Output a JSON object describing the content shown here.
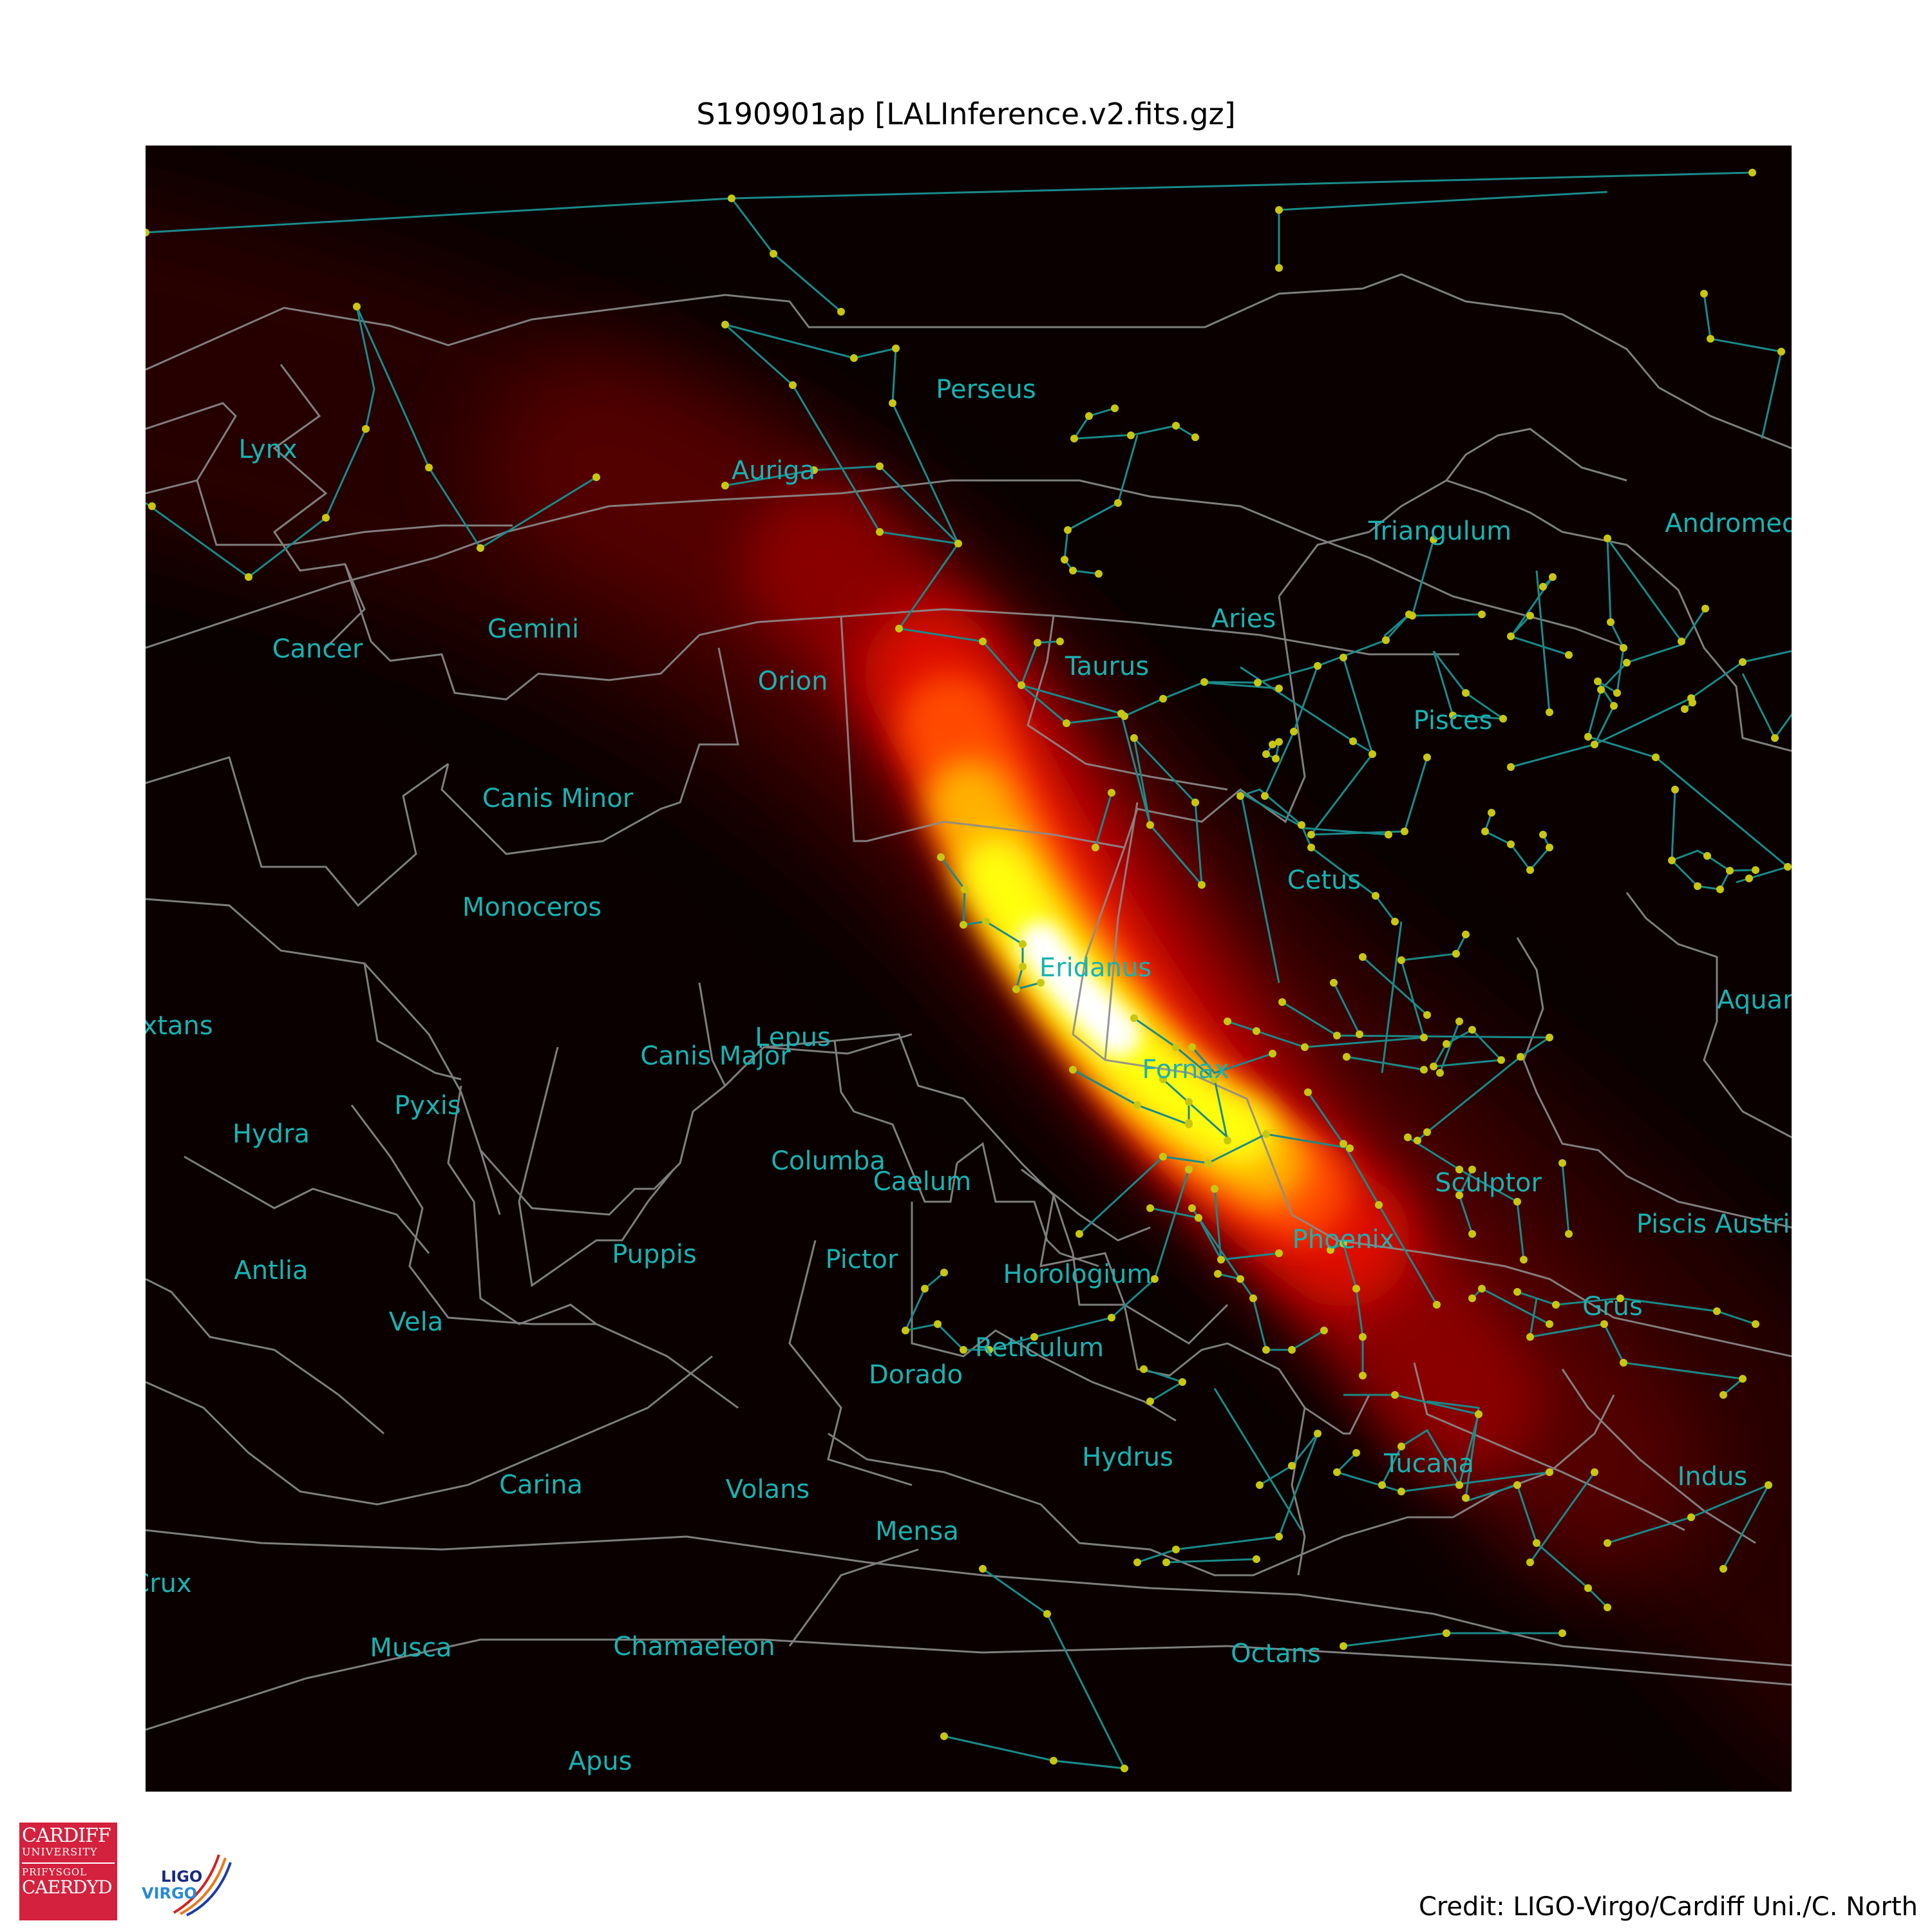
{
  "title": "S190901ap [LALInference.v2.fits.gz]",
  "credit": "Credit: LIGO-Virgo/Cardiff Uni./C. North",
  "colors": {
    "background": "#0a0000",
    "constellation_lines": "#1a8a8a",
    "boundaries": "#8c8c8c",
    "stars": "#c7c710",
    "labels": "#19b2b2",
    "heatmap_low": "#3d0000",
    "heatmap_mid": "#ff1a00",
    "heatmap_high": "#ffff00",
    "heatmap_peak": "#ffffff"
  },
  "constellations": [
    "Lynx",
    "Auriga",
    "Perseus",
    "Triangulum",
    "Andromeda",
    "Gemini",
    "Cancer",
    "Aries",
    "Taurus",
    "Orion",
    "Pisces",
    "Canis Minor",
    "Monoceros",
    "Cetus",
    "Eridanus",
    "Sextans",
    "Lepus",
    "Canis Major",
    "Aquarius",
    "Fornax",
    "Pyxis",
    "Hydra",
    "Columba",
    "Caelum",
    "Sculptor",
    "Piscis Austrinus",
    "Phoenix",
    "Antlia",
    "Puppis",
    "Pictor",
    "Horologium",
    "Vela",
    "Grus",
    "Reticulum",
    "Dorado",
    "Hydrus",
    "Tucana",
    "Carina",
    "Volans",
    "Indus",
    "Mensa",
    "Crux",
    "Musca",
    "Chamaeleon",
    "Octans",
    "Apus"
  ],
  "logos": {
    "cardiff": {
      "line1": "CARDIFF",
      "line2": "UNIVERSITY",
      "line3": "PRIFYSGOL",
      "line4": "CAERDYD"
    },
    "ligo_virgo": {
      "line1": "LIGO",
      "line2": "VIRGO"
    }
  }
}
